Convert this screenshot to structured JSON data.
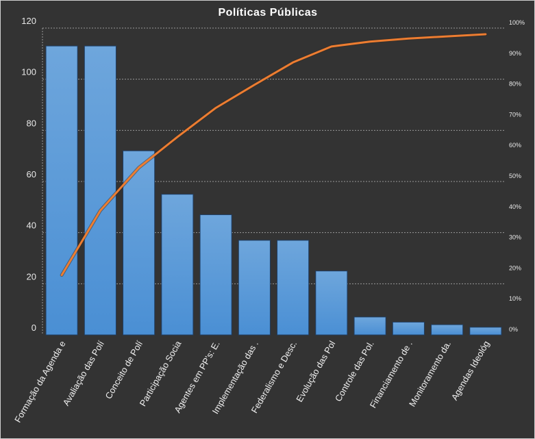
{
  "chart_data": {
    "type": "bar",
    "title": "Políticas  Públicas",
    "categories": [
      "Formação da Agenda e",
      "Avaliação das Polí",
      "Conceito de Polí",
      "Participação Socia",
      "Agentes em PP's: E.",
      "Implementação das .",
      "Federalismo e Desc.",
      "Evolução das Pol",
      "Controle das Pol.",
      "Financiamento de .",
      "Monitoramento da.",
      "Agendas Ideológ"
    ],
    "series": [
      {
        "type": "bar",
        "values": [
          113,
          113,
          72,
          55,
          47,
          37,
          37,
          25,
          7,
          5,
          4,
          3
        ]
      },
      {
        "type": "line",
        "axis": "secondary",
        "values": [
          19.5,
          40.5,
          54.5,
          64.5,
          74,
          81.5,
          88.8,
          94,
          95.6,
          96.6,
          97.3,
          98
        ]
      }
    ],
    "ylim": [
      0,
      120
    ],
    "yticks": [
      "0",
      "20",
      "40",
      "60",
      "80",
      "100",
      "120"
    ],
    "y2lim": [
      0,
      100
    ],
    "y2ticks": [
      "0%",
      "10%",
      "20%",
      "30%",
      "40%",
      "50%",
      "60%",
      "70%",
      "80%",
      "90%",
      "100%"
    ],
    "grid": true,
    "legend": "none",
    "colors": {
      "bar": "#4a8fd4",
      "bar_top": "#6ea6dc",
      "line": "#ed7d31",
      "background": "#333333",
      "grid": "#9a9a9a"
    }
  }
}
